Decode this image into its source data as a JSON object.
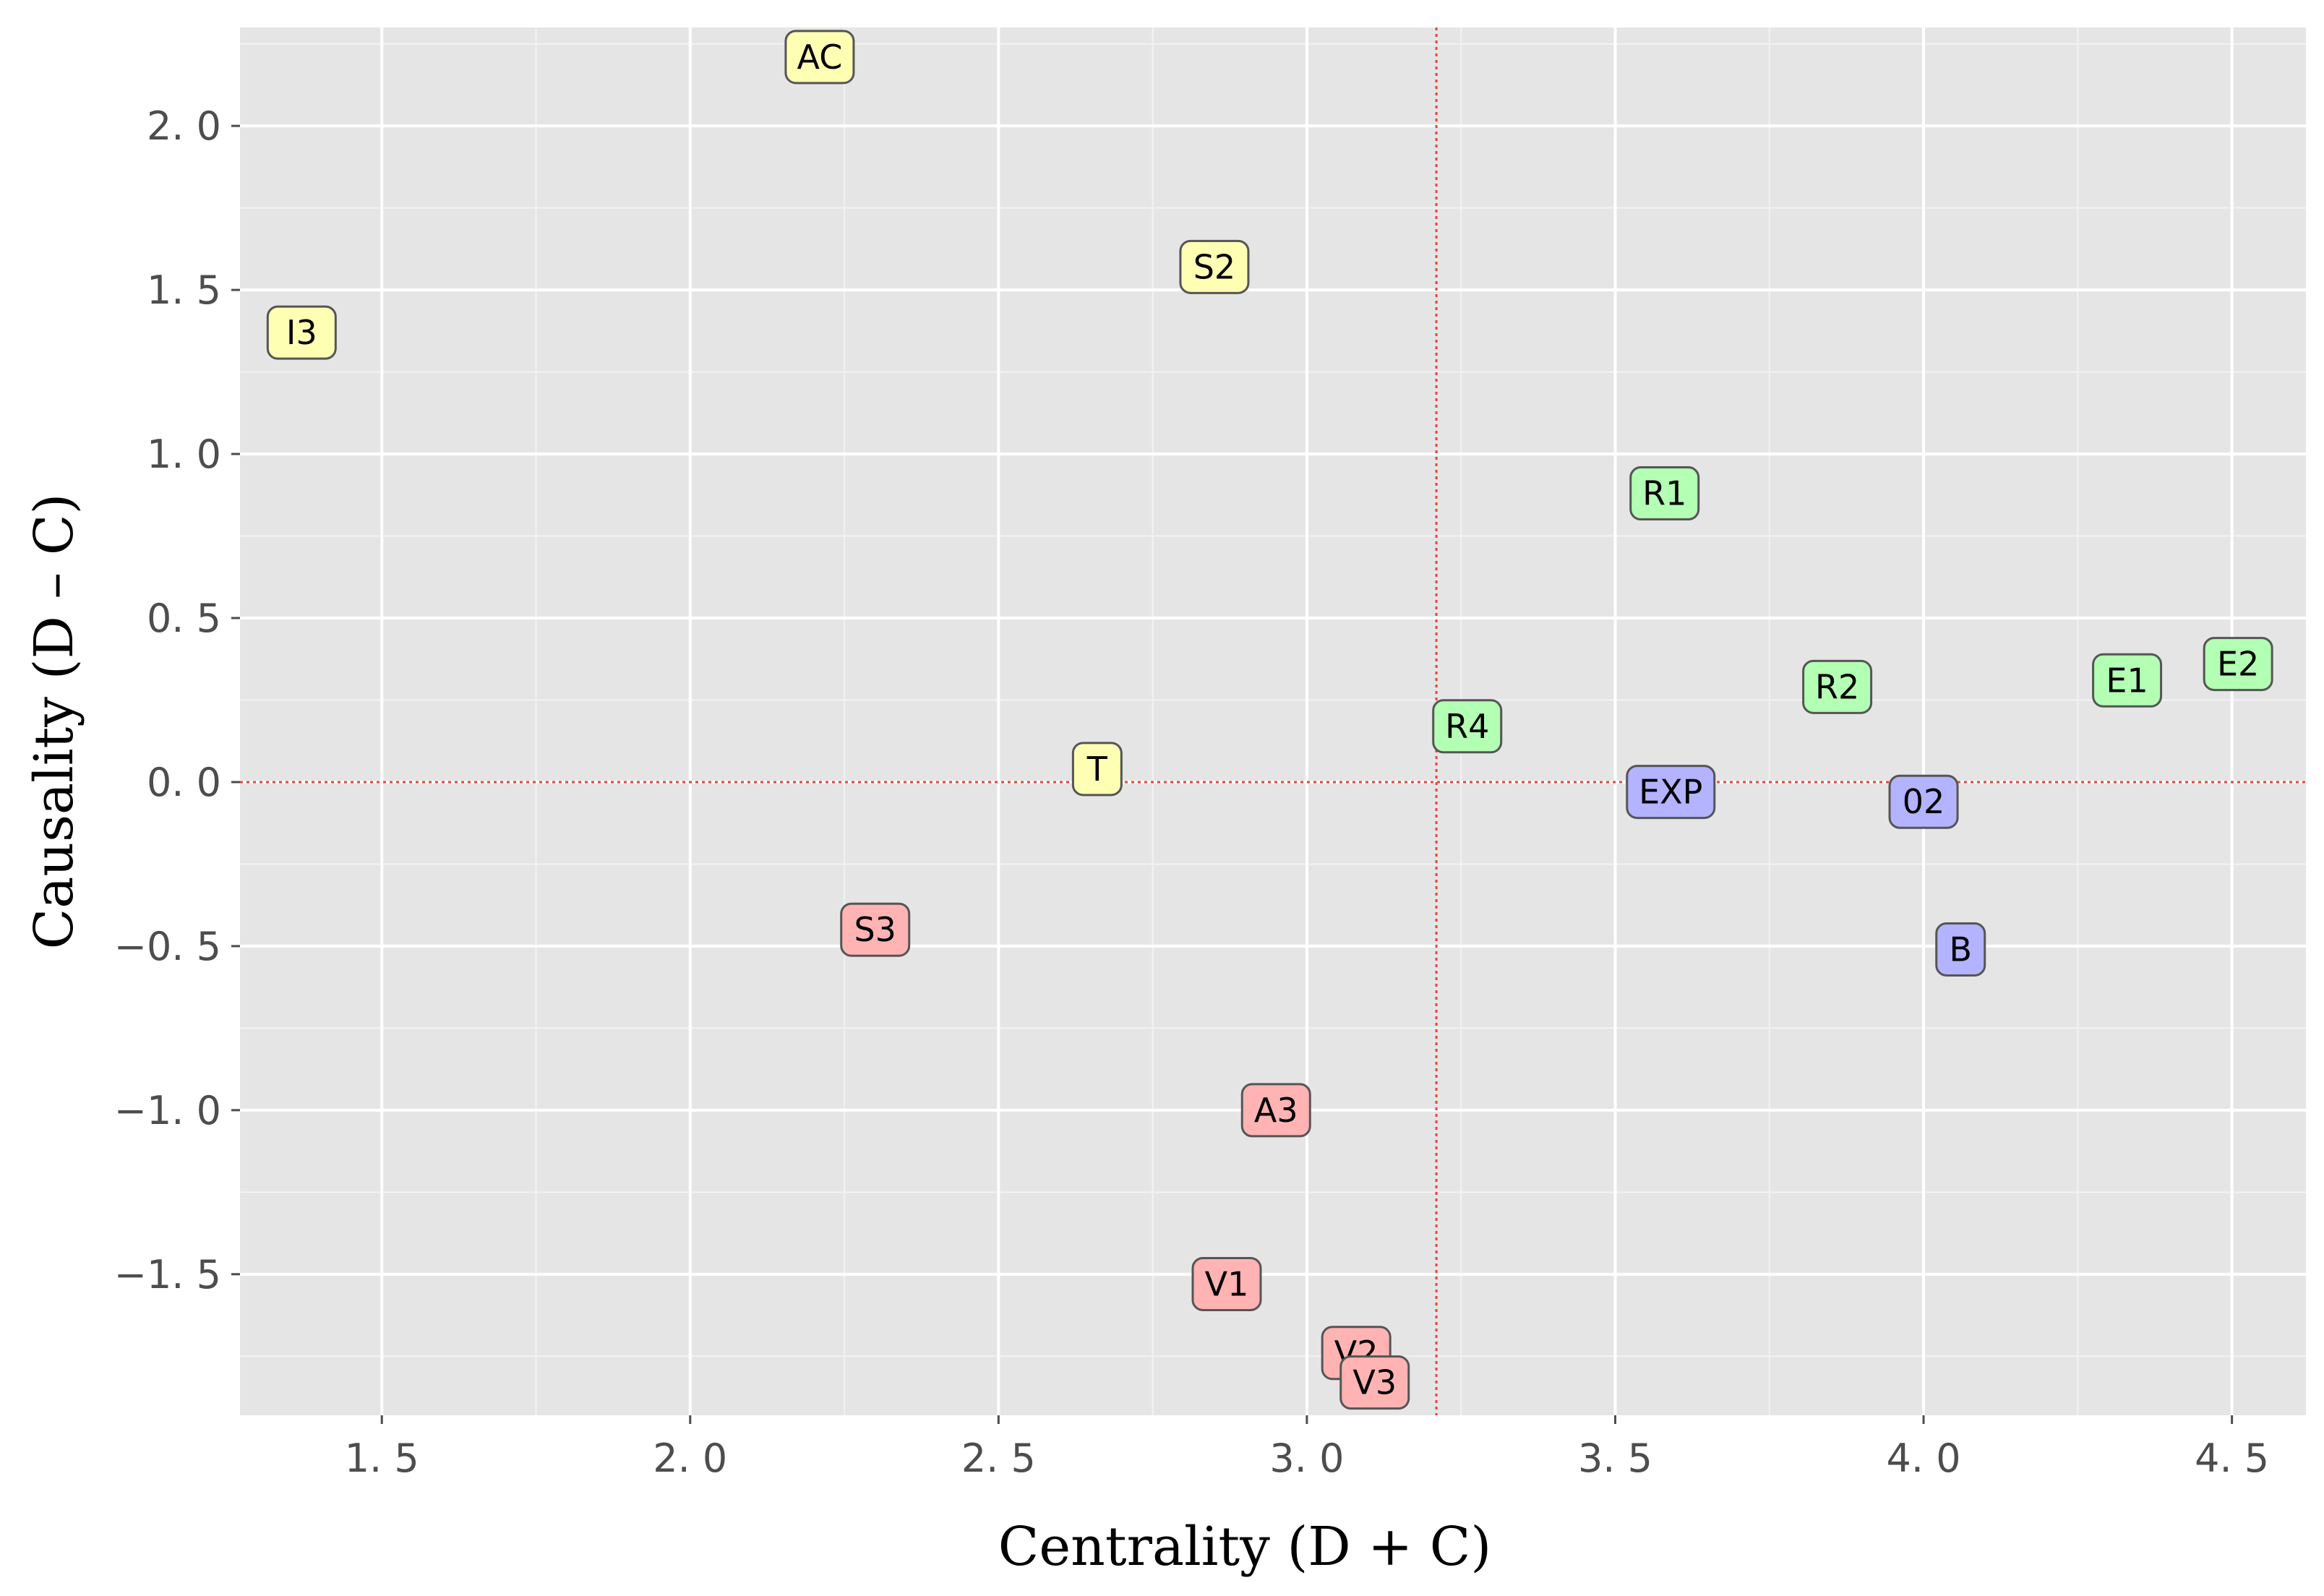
{
  "chart_data": {
    "type": "scatter",
    "xlabel": "Centrality (D + C)",
    "ylabel": "Causality (D – C)",
    "xlim": [
      1.27,
      4.62
    ],
    "ylim": [
      -1.93,
      2.3
    ],
    "x_ticks": [
      1.5,
      2.0,
      2.5,
      3.0,
      3.5,
      4.0,
      4.5
    ],
    "x_tick_labels": [
      "1. 5",
      "2. 0",
      "2. 5",
      "3. 0",
      "3. 5",
      "4. 0",
      "4. 5"
    ],
    "y_ticks": [
      2.0,
      1.5,
      1.0,
      0.5,
      0.0,
      -0.5,
      -1.0,
      -1.5
    ],
    "y_tick_labels": [
      "2. 0",
      "1. 5",
      "1. 0",
      "0. 5",
      "0. 0",
      "−0. 5",
      "−1. 0",
      "−1. 5"
    ],
    "grid": true,
    "reference_lines": {
      "x": 3.21,
      "y": 0.0,
      "color": "#e8423b"
    },
    "group_colors": {
      "yellow": "#ffffb3",
      "green": "#b3ffb3",
      "blue": "#b3b3ff",
      "red": "#ffb3b3"
    },
    "points": [
      {
        "label": "AC",
        "x": 2.21,
        "y": 2.21,
        "group": "yellow"
      },
      {
        "label": "S2",
        "x": 2.85,
        "y": 1.57,
        "group": "yellow"
      },
      {
        "label": "I3",
        "x": 1.37,
        "y": 1.37,
        "group": "yellow"
      },
      {
        "label": "T",
        "x": 2.66,
        "y": 0.04,
        "group": "yellow"
      },
      {
        "label": "R1",
        "x": 3.58,
        "y": 0.88,
        "group": "green"
      },
      {
        "label": "R2",
        "x": 3.86,
        "y": 0.29,
        "group": "green"
      },
      {
        "label": "R4",
        "x": 3.26,
        "y": 0.17,
        "group": "green"
      },
      {
        "label": "E1",
        "x": 4.33,
        "y": 0.31,
        "group": "green"
      },
      {
        "label": "E2",
        "x": 4.51,
        "y": 0.36,
        "group": "green"
      },
      {
        "label": "EXP",
        "x": 3.59,
        "y": -0.03,
        "group": "blue"
      },
      {
        "label": "02",
        "x": 4.0,
        "y": -0.06,
        "group": "blue"
      },
      {
        "label": "B",
        "x": 4.06,
        "y": -0.51,
        "group": "blue"
      },
      {
        "label": "S3",
        "x": 2.3,
        "y": -0.45,
        "group": "red"
      },
      {
        "label": "A3",
        "x": 2.95,
        "y": -1.0,
        "group": "red"
      },
      {
        "label": "V1",
        "x": 2.87,
        "y": -1.53,
        "group": "red"
      },
      {
        "label": "V2",
        "x": 3.08,
        "y": -1.74,
        "group": "red"
      },
      {
        "label": "V3",
        "x": 3.11,
        "y": -1.83,
        "group": "red"
      }
    ]
  }
}
